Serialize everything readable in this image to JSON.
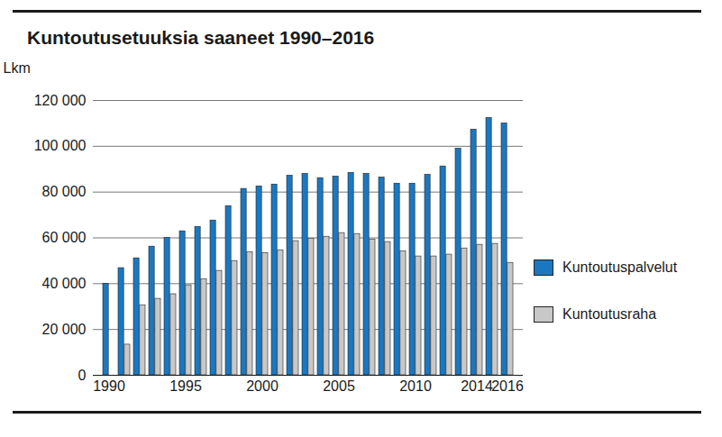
{
  "chart_data": {
    "type": "bar",
    "title": "Kuntoutusetuuksia saaneet 1990–2016",
    "y_label": "Lkm",
    "categories": [
      "1990",
      null,
      null,
      null,
      null,
      "1995",
      null,
      null,
      null,
      null,
      "2000",
      null,
      null,
      null,
      null,
      "2005",
      null,
      null,
      null,
      null,
      "2010",
      null,
      null,
      null,
      "2014",
      null,
      "2016"
    ],
    "series": [
      {
        "name": "Kuntoutuspalvelut",
        "color": "#1a78c2",
        "values": [
          40000,
          46800,
          51100,
          56200,
          60000,
          62900,
          64800,
          67600,
          73900,
          81400,
          82500,
          83300,
          87200,
          88000,
          86100,
          86800,
          88400,
          88000,
          86400,
          83700,
          83700,
          87600,
          91200,
          99000,
          107300,
          112400,
          110000
        ]
      },
      {
        "name": "Kuntoutusraha",
        "color": "#c8c8c8",
        "values": [
          null,
          13400,
          30600,
          33400,
          35400,
          39300,
          42000,
          45600,
          49900,
          53800,
          53400,
          54600,
          58600,
          59700,
          60500,
          62100,
          61700,
          59300,
          58200,
          54200,
          51900,
          51900,
          52700,
          55400,
          57000,
          57400,
          49100
        ]
      }
    ],
    "ylim": [
      0,
      120000
    ],
    "yticks": [
      0,
      {
        "value": 20000,
        "label": "20 000"
      },
      {
        "value": 40000,
        "label": "40 000"
      },
      {
        "value": 60000,
        "label": "60 000"
      },
      {
        "value": 80000,
        "label": "80 000"
      },
      {
        "value": 100000,
        "label": "100 000"
      },
      {
        "value": 120000,
        "label": "120 000"
      }
    ],
    "grid": true,
    "legend": "right"
  }
}
